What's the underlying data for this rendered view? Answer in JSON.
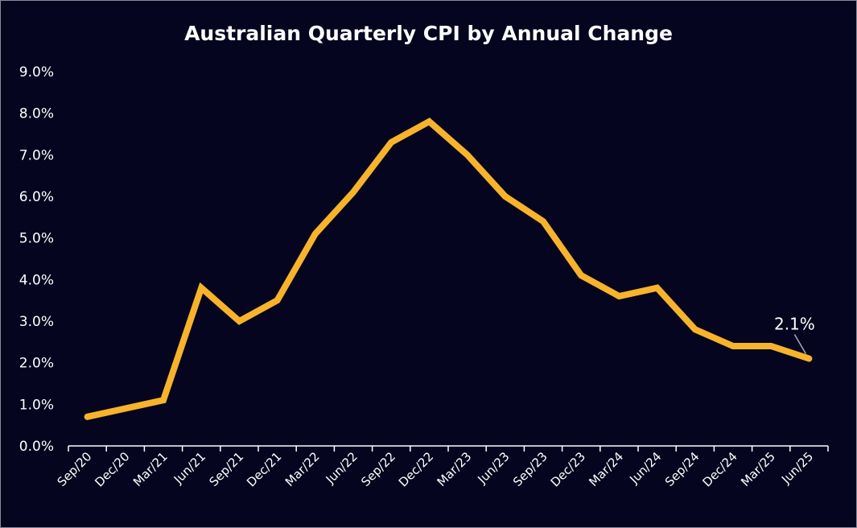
{
  "chart_data": {
    "type": "line",
    "title": "Australian Quarterly CPI by Annual Change",
    "xlabel": "",
    "ylabel": "",
    "ylim": [
      0,
      9
    ],
    "y_ticks": [
      "0.0%",
      "1.0%",
      "2.0%",
      "3.0%",
      "4.0%",
      "5.0%",
      "6.0%",
      "7.0%",
      "8.0%",
      "9.0%"
    ],
    "categories": [
      "Sep/20",
      "Dec/20",
      "Mar/21",
      "Jun/21",
      "Sep/21",
      "Dec/21",
      "Mar/22",
      "Jun/22",
      "Sep/22",
      "Dec/22",
      "Mar/23",
      "Jun/23",
      "Sep/23",
      "Dec/23",
      "Mar/24",
      "Jun/24",
      "Sep/24",
      "Dec/24",
      "Mar/25",
      "Jun/25"
    ],
    "series": [
      {
        "values": [
          0.7,
          0.9,
          1.1,
          3.8,
          3.0,
          3.5,
          5.1,
          6.1,
          7.3,
          7.8,
          7.0,
          6.0,
          5.4,
          4.1,
          3.6,
          3.8,
          2.8,
          2.4,
          2.4,
          2.1
        ],
        "color": "#f7b32b"
      }
    ],
    "annotations": [
      {
        "category": "Jun/25",
        "text": "2.1%"
      }
    ],
    "grid": false,
    "legend": "none",
    "colors": {
      "background": "#06051f",
      "text": "#ffffff",
      "axis": "#ffffff",
      "line": "#f7b32b"
    }
  }
}
